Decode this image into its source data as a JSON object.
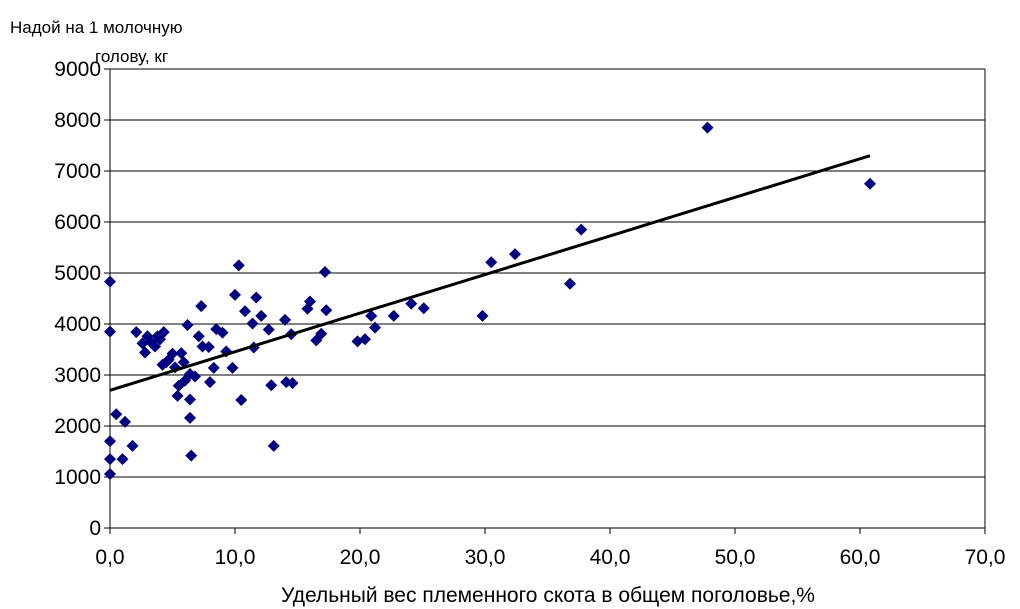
{
  "chart_data": {
    "type": "scatter",
    "title": "",
    "ylabel_lines": [
      "Надой на 1 молочную",
      "голову, кг"
    ],
    "xlabel": "Удельный вес племенного скота в общем поголовье,%",
    "xlim": [
      0,
      70
    ],
    "ylim": [
      0,
      9000
    ],
    "x_ticks": [
      "0,0",
      "10,0",
      "20,0",
      "30,0",
      "40,0",
      "50,0",
      "60,0",
      "70,0"
    ],
    "y_ticks": [
      "0",
      "1000",
      "2000",
      "3000",
      "4000",
      "5000",
      "6000",
      "7000",
      "8000",
      "9000"
    ],
    "grid": "horizontal",
    "marker_color": "#000080",
    "trendline": {
      "x": [
        0,
        60.8
      ],
      "y": [
        2700,
        7300
      ],
      "color": "#000000"
    },
    "points": [
      [
        0.0,
        4830
      ],
      [
        0.0,
        3850
      ],
      [
        0.0,
        1700
      ],
      [
        0.0,
        1350
      ],
      [
        0.0,
        1060
      ],
      [
        0.5,
        2230
      ],
      [
        1.0,
        1350
      ],
      [
        1.2,
        2080
      ],
      [
        1.8,
        1610
      ],
      [
        2.1,
        3840
      ],
      [
        2.6,
        3620
      ],
      [
        2.8,
        3440
      ],
      [
        3.0,
        3760
      ],
      [
        3.3,
        3640
      ],
      [
        3.6,
        3560
      ],
      [
        3.8,
        3760
      ],
      [
        4.0,
        3700
      ],
      [
        4.2,
        3200
      ],
      [
        4.5,
        3250
      ],
      [
        4.3,
        3840
      ],
      [
        4.7,
        3300
      ],
      [
        5.0,
        3420
      ],
      [
        5.2,
        3150
      ],
      [
        5.4,
        2590
      ],
      [
        5.5,
        2790
      ],
      [
        5.7,
        3430
      ],
      [
        5.9,
        3250
      ],
      [
        6.0,
        2890
      ],
      [
        6.2,
        3980
      ],
      [
        6.4,
        3020
      ],
      [
        6.4,
        2520
      ],
      [
        6.4,
        2160
      ],
      [
        6.5,
        1420
      ],
      [
        6.8,
        2970
      ],
      [
        7.1,
        3760
      ],
      [
        7.3,
        4350
      ],
      [
        7.4,
        3560
      ],
      [
        7.9,
        3550
      ],
      [
        8.0,
        2860
      ],
      [
        8.3,
        3140
      ],
      [
        8.5,
        3900
      ],
      [
        9.0,
        3830
      ],
      [
        9.3,
        3460
      ],
      [
        9.8,
        3140
      ],
      [
        10.0,
        4570
      ],
      [
        10.3,
        5150
      ],
      [
        10.5,
        2510
      ],
      [
        10.8,
        4250
      ],
      [
        11.4,
        4010
      ],
      [
        11.5,
        3540
      ],
      [
        11.7,
        4520
      ],
      [
        12.1,
        4160
      ],
      [
        12.7,
        3890
      ],
      [
        12.9,
        2800
      ],
      [
        13.1,
        1610
      ],
      [
        14.0,
        4080
      ],
      [
        14.1,
        2860
      ],
      [
        14.5,
        3800
      ],
      [
        14.6,
        2840
      ],
      [
        15.8,
        4300
      ],
      [
        16.0,
        4440
      ],
      [
        16.5,
        3680
      ],
      [
        16.9,
        3810
      ],
      [
        17.2,
        5020
      ],
      [
        17.3,
        4270
      ],
      [
        19.8,
        3660
      ],
      [
        20.4,
        3700
      ],
      [
        20.9,
        4160
      ],
      [
        21.2,
        3930
      ],
      [
        22.7,
        4160
      ],
      [
        24.1,
        4400
      ],
      [
        25.1,
        4310
      ],
      [
        29.8,
        4160
      ],
      [
        30.5,
        5210
      ],
      [
        32.4,
        5370
      ],
      [
        36.8,
        4790
      ],
      [
        37.7,
        5850
      ],
      [
        47.8,
        7850
      ],
      [
        60.8,
        6750
      ]
    ]
  }
}
